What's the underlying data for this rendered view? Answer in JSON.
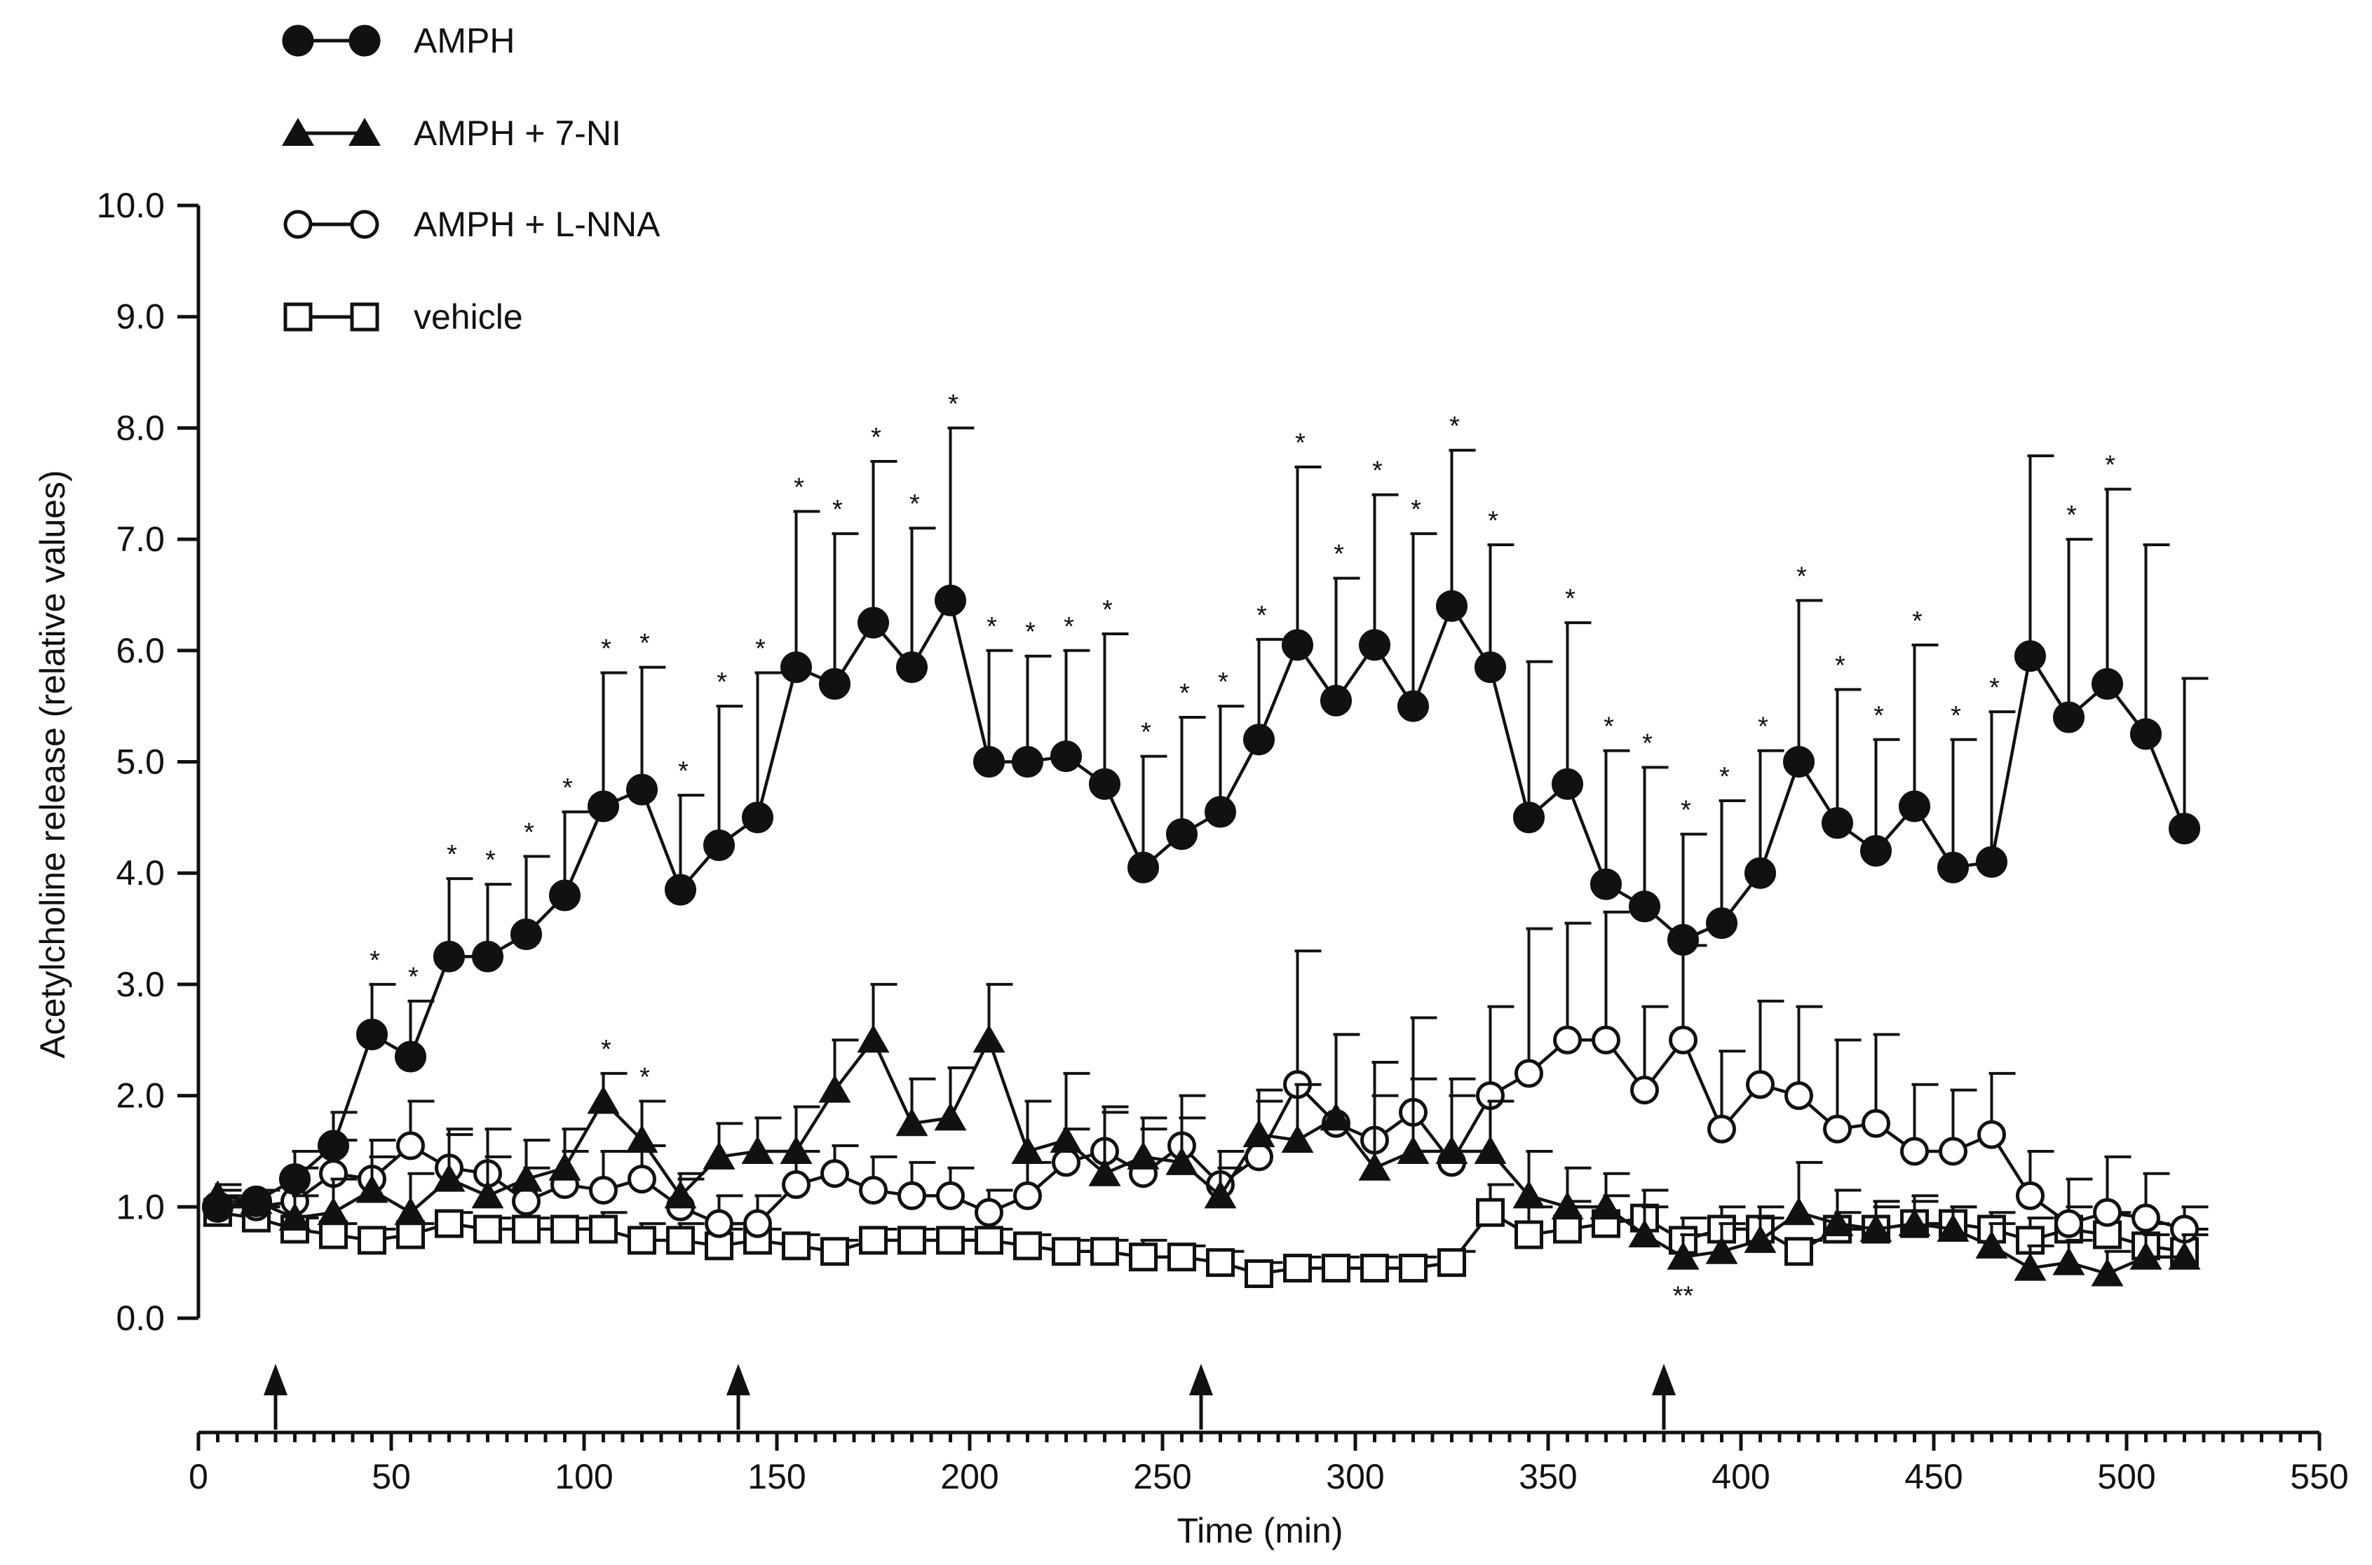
{
  "chart_data": {
    "type": "line",
    "title": "",
    "xlabel": "Time (min)",
    "ylabel": "Acetylcholine release (relative values)",
    "xlim": [
      0,
      550
    ],
    "ylim": [
      0,
      10
    ],
    "xticks": [
      "0",
      "50",
      "100",
      "150",
      "200",
      "250",
      "300",
      "350",
      "400",
      "450",
      "500",
      "550"
    ],
    "yticks": [
      "0.0",
      "1.0",
      "2.0",
      "3.0",
      "4.0",
      "5.0",
      "6.0",
      "7.0",
      "8.0",
      "9.0",
      "10.0"
    ],
    "injection_arrows_min": [
      20,
      140,
      260,
      380
    ],
    "x": [
      5,
      15,
      25,
      35,
      45,
      55,
      65,
      75,
      85,
      95,
      105,
      115,
      125,
      135,
      145,
      155,
      165,
      175,
      185,
      195,
      205,
      215,
      225,
      235,
      245,
      255,
      265,
      275,
      285,
      295,
      305,
      315,
      325,
      335,
      345,
      355,
      365,
      375,
      385,
      395,
      405,
      415,
      425,
      435,
      445,
      455,
      465,
      475,
      485,
      495,
      505,
      515
    ],
    "legend_position": "top-left",
    "series": [
      {
        "name": "AMPH",
        "legend_symbol": "●–●",
        "marker": "filled-circle",
        "values": [
          1.0,
          1.05,
          1.25,
          1.55,
          2.55,
          2.35,
          3.25,
          3.25,
          3.45,
          3.8,
          4.6,
          4.75,
          3.85,
          4.25,
          4.5,
          5.85,
          5.7,
          6.25,
          5.85,
          6.45,
          5.0,
          5.0,
          5.05,
          4.8,
          4.05,
          4.35,
          4.55,
          5.2,
          6.05,
          5.55,
          6.05,
          5.5,
          6.4,
          5.85,
          4.5,
          4.8,
          3.9,
          3.7,
          3.4,
          3.55,
          4.0,
          5.0,
          4.45,
          4.2,
          4.6,
          4.05,
          4.1,
          5.95,
          5.4,
          5.7,
          5.25,
          4.4
        ],
        "errors": [
          0.1,
          0.1,
          0.25,
          0.3,
          0.45,
          0.5,
          0.7,
          0.65,
          0.7,
          0.75,
          1.2,
          1.1,
          0.85,
          1.25,
          1.3,
          1.4,
          1.35,
          1.45,
          1.25,
          1.55,
          1.0,
          0.95,
          0.95,
          1.35,
          1.0,
          1.05,
          0.95,
          0.9,
          1.6,
          1.1,
          1.35,
          1.55,
          1.4,
          1.1,
          1.4,
          1.45,
          1.2,
          1.25,
          0.95,
          1.1,
          1.1,
          1.45,
          1.2,
          1.0,
          1.45,
          1.15,
          1.35,
          1.8,
          1.6,
          1.75,
          1.7,
          1.35
        ],
        "significance": [
          "",
          "",
          "",
          "",
          "*",
          "*",
          "*",
          "*",
          "*",
          "*",
          "*",
          "*",
          "*",
          "*",
          "*",
          "*",
          "*",
          "*",
          "*",
          "*",
          "*",
          "*",
          "*",
          "*",
          "*",
          "*",
          "*",
          "*",
          "*",
          "*",
          "*",
          "*",
          "*",
          "*",
          "",
          "*",
          "*",
          "*",
          "*",
          "*",
          "*",
          "*",
          "*",
          "*",
          "*",
          "*",
          "*",
          "",
          "*",
          "*",
          "",
          ""
        ]
      },
      {
        "name": "AMPH + 7-NI",
        "legend_symbol": "▲–▲",
        "marker": "filled-triangle",
        "values": [
          1.1,
          1.05,
          0.9,
          0.95,
          1.15,
          0.95,
          1.25,
          1.1,
          1.25,
          1.35,
          1.95,
          1.6,
          1.1,
          1.45,
          1.5,
          1.5,
          2.05,
          2.5,
          1.75,
          1.8,
          2.5,
          1.5,
          1.6,
          1.3,
          1.45,
          1.4,
          1.1,
          1.65,
          1.6,
          1.8,
          1.35,
          1.5,
          1.5,
          1.5,
          1.1,
          1.0,
          1.0,
          0.75,
          0.55,
          0.6,
          0.7,
          0.95,
          0.85,
          0.8,
          0.85,
          0.8,
          0.65,
          0.45,
          0.5,
          0.4,
          0.55,
          0.55
        ],
        "errors": [
          0.1,
          0.1,
          0.2,
          0.3,
          0.3,
          0.35,
          0.4,
          0.35,
          0.35,
          0.35,
          0.25,
          0.35,
          0.2,
          0.3,
          0.3,
          0.4,
          0.45,
          0.5,
          0.4,
          0.45,
          0.5,
          0.45,
          0.6,
          0.55,
          0.35,
          0.4,
          0.25,
          0.4,
          0.5,
          0.75,
          0.65,
          0.65,
          0.5,
          0.45,
          0.4,
          0.35,
          0.3,
          0.25,
          0.2,
          0.25,
          0.2,
          0.45,
          0.3,
          0.25,
          0.25,
          0.2,
          0.2,
          0.2,
          0.2,
          0.2,
          0.2,
          0.2
        ],
        "significance": [
          "",
          "",
          "",
          "",
          "",
          "",
          "",
          "",
          "",
          "",
          "*",
          "*",
          "",
          "",
          "",
          "",
          "",
          "",
          "",
          "",
          "",
          "",
          "",
          "",
          "",
          "",
          "",
          "",
          "",
          "",
          "",
          "",
          "",
          "",
          "",
          "",
          "",
          "",
          "**",
          "",
          "",
          "",
          "",
          "",
          "",
          "",
          "",
          "",
          "",
          "",
          "",
          ""
        ]
      },
      {
        "name": "AMPH + L-NNA",
        "legend_symbol": "○–○",
        "marker": "open-circle",
        "values": [
          1.0,
          1.0,
          1.05,
          1.3,
          1.25,
          1.55,
          1.35,
          1.3,
          1.05,
          1.2,
          1.15,
          1.25,
          1.0,
          0.85,
          0.85,
          1.2,
          1.3,
          1.15,
          1.1,
          1.1,
          0.95,
          1.1,
          1.4,
          1.5,
          1.3,
          1.55,
          1.2,
          1.45,
          2.1,
          1.75,
          1.6,
          1.85,
          1.4,
          2.0,
          2.2,
          2.5,
          2.5,
          2.05,
          2.5,
          1.7,
          2.1,
          2.0,
          1.7,
          1.75,
          1.5,
          1.5,
          1.65,
          1.1,
          0.85,
          0.95,
          0.9,
          0.8
        ],
        "errors": [
          0.15,
          0.15,
          0.3,
          0.3,
          0.35,
          0.4,
          0.35,
          0.4,
          0.3,
          0.3,
          0.35,
          0.3,
          0.25,
          0.25,
          0.25,
          0.3,
          0.25,
          0.3,
          0.3,
          0.25,
          0.2,
          0.3,
          0.3,
          0.4,
          0.4,
          0.45,
          0.3,
          0.5,
          1.2,
          0.8,
          0.7,
          0.85,
          0.75,
          0.8,
          1.3,
          1.05,
          1.15,
          0.75,
          0.85,
          0.7,
          0.75,
          0.8,
          0.8,
          0.8,
          0.6,
          0.55,
          0.55,
          0.4,
          0.4,
          0.5,
          0.4,
          0.2
        ],
        "significance": []
      },
      {
        "name": "vehicle",
        "legend_symbol": "□–□",
        "marker": "open-square",
        "values": [
          0.95,
          0.9,
          0.8,
          0.75,
          0.7,
          0.75,
          0.85,
          0.8,
          0.8,
          0.8,
          0.8,
          0.7,
          0.7,
          0.65,
          0.7,
          0.65,
          0.6,
          0.7,
          0.7,
          0.7,
          0.7,
          0.65,
          0.6,
          0.6,
          0.55,
          0.55,
          0.5,
          0.4,
          0.45,
          0.45,
          0.45,
          0.45,
          0.5,
          0.95,
          0.75,
          0.8,
          0.85,
          0.9,
          0.7,
          0.8,
          0.8,
          0.6,
          0.8,
          0.8,
          0.85,
          0.85,
          0.8,
          0.7,
          0.8,
          0.75,
          0.65,
          0.6
        ],
        "errors": [
          0.1,
          0.1,
          0.1,
          0.1,
          0.1,
          0.1,
          0.1,
          0.1,
          0.1,
          0.1,
          0.15,
          0.15,
          0.15,
          0.15,
          0.1,
          0.1,
          0.1,
          0.1,
          0.1,
          0.1,
          0.1,
          0.1,
          0.1,
          0.1,
          0.15,
          0.1,
          0.1,
          0.1,
          0.1,
          0.1,
          0.1,
          0.1,
          0.1,
          0.25,
          0.25,
          0.25,
          0.25,
          0.25,
          0.2,
          0.2,
          0.2,
          0.1,
          0.15,
          0.2,
          0.2,
          0.15,
          0.15,
          0.2,
          0.2,
          0.2,
          0.2,
          0.2
        ],
        "significance": []
      }
    ]
  }
}
